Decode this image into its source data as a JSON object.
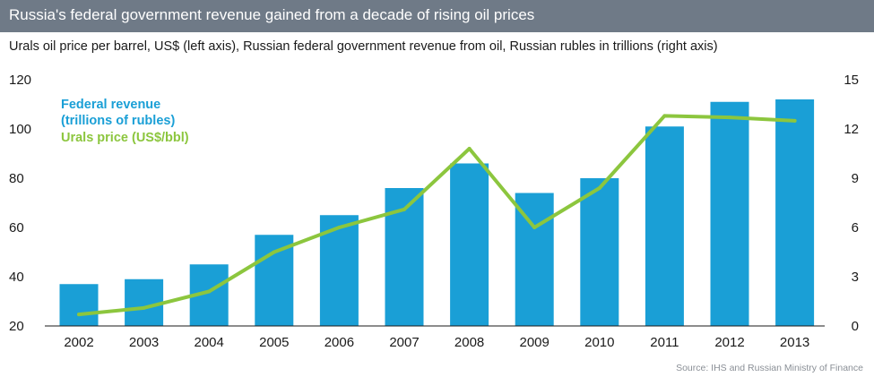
{
  "title": "Russia's federal government revenue gained from a decade of rising oil prices",
  "subtitle": "Urals oil price per barrel, US$ (left axis), Russian federal government revenue from oil, Russian rubles in trillions (right axis)",
  "source": "Source: IHS and Russian Ministry of Finance",
  "colors": {
    "title_bg": "#6f7a87",
    "bar": "#1a9fd6",
    "line": "#8cc63e"
  },
  "chart_data": {
    "type": "bar",
    "categories": [
      "2002",
      "2003",
      "2004",
      "2005",
      "2006",
      "2007",
      "2008",
      "2009",
      "2010",
      "2011",
      "2012",
      "2013"
    ],
    "left_axis": {
      "ylim": [
        20,
        120
      ],
      "ticks": [
        20,
        40,
        60,
        80,
        100,
        120
      ]
    },
    "right_axis": {
      "ylim": [
        0,
        15
      ],
      "ticks": [
        0,
        3,
        6,
        9,
        12,
        15
      ]
    },
    "grid": false,
    "series": [
      {
        "name_lines": [
          "Federal revenue",
          "(trillions of rubles)"
        ],
        "type": "bar",
        "axis": "left",
        "values": [
          37,
          39,
          45,
          57,
          65,
          76,
          86,
          74,
          80,
          101,
          111,
          112
        ]
      },
      {
        "name_lines": [
          "Urals price (US$/bbl)"
        ],
        "type": "line",
        "axis": "right",
        "values": [
          0.7,
          1.1,
          2.1,
          4.5,
          6.0,
          7.1,
          10.8,
          6.0,
          8.4,
          12.8,
          12.7,
          12.5
        ]
      }
    ],
    "legend_placement": "top-left"
  }
}
